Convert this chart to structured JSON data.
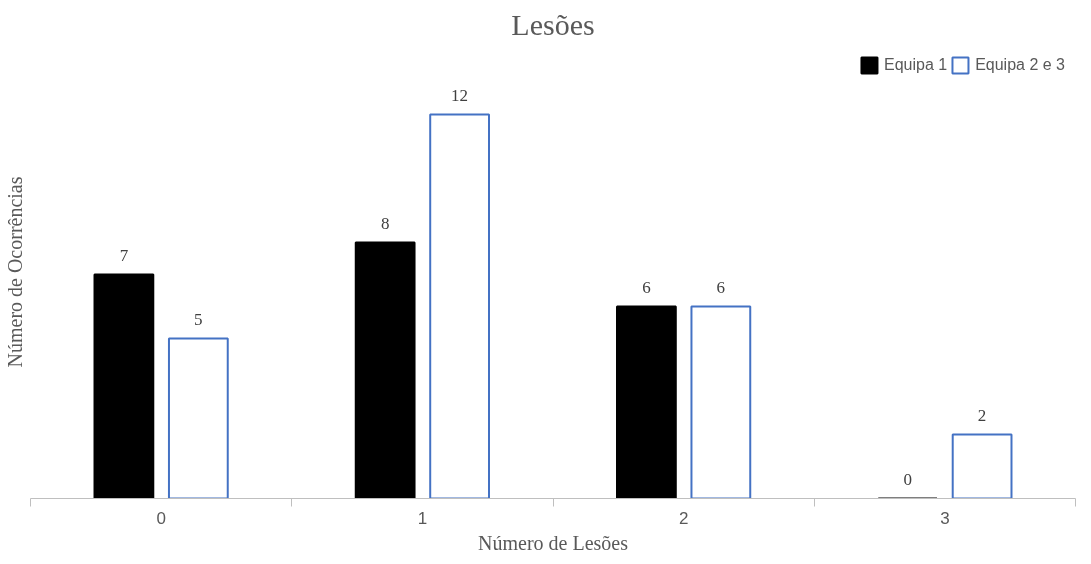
{
  "chart_data": {
    "type": "bar",
    "title": "Lesões",
    "xlabel": "Número de Lesões",
    "ylabel": "Número de Ocorrências",
    "categories": [
      "0",
      "1",
      "2",
      "3"
    ],
    "series": [
      {
        "name": "Equipa 1",
        "color": "#000000",
        "values": [
          7,
          8,
          6,
          0
        ]
      },
      {
        "name": "Equipa 2 e 3",
        "color": "#4472c4",
        "values": [
          5,
          12,
          6,
          2
        ]
      }
    ],
    "data_labels": true,
    "legend": "top right",
    "grid": false
  }
}
